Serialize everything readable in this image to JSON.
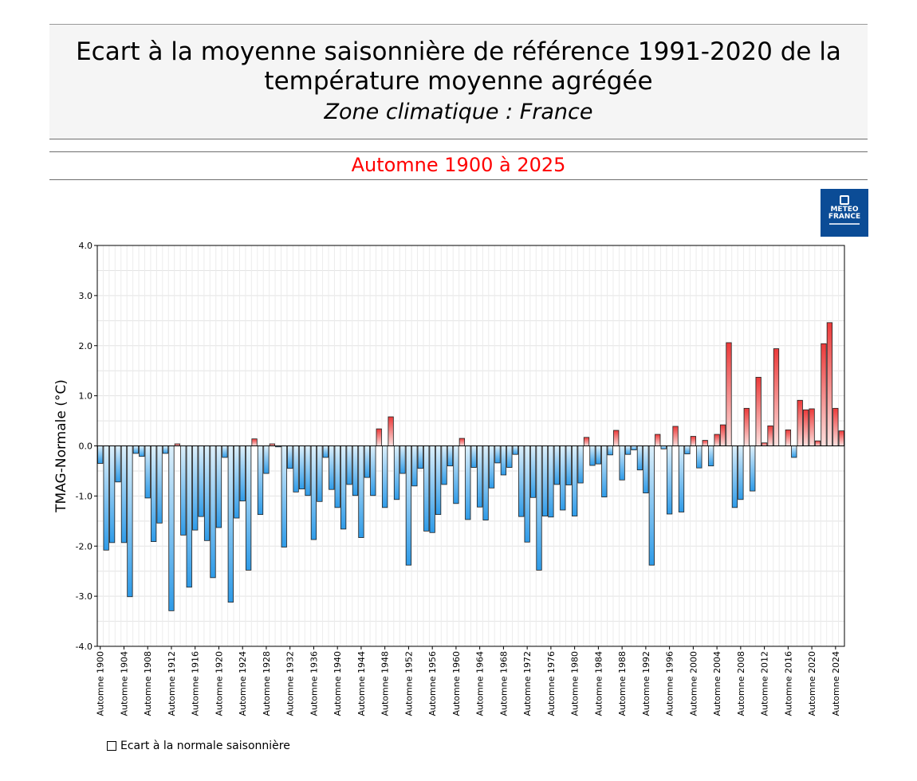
{
  "header": {
    "title": "Ecart à la moyenne saisonnière  de référence 1991-2020  de la température moyenne  agrégée",
    "subtitle": "Zone climatique : France",
    "period": "Automne 1900 à 2025"
  },
  "logo": {
    "line1": "METEO",
    "line2": "FRANCE"
  },
  "legend": {
    "label": "Ecart à la normale saisonnière"
  },
  "colors": {
    "negative_light": "#ddf0fb",
    "negative_dark": "#2e9be8",
    "positive_light": "#fde1df",
    "positive_dark": "#ec3a3a",
    "brand": "#0b4c96"
  },
  "chart_data": {
    "type": "bar",
    "ylabel": "TMAG-Normale (°C)",
    "ylim": [
      -4.0,
      4.0
    ],
    "yticks": [
      "4.0",
      "3.0",
      "2.0",
      "1.0",
      "0.0",
      "-1.0",
      "-2.0",
      "-3.0",
      "-4.0"
    ],
    "grid": true,
    "legend_position": "bottom-left",
    "x_tick_step": 4,
    "categories": [
      "Automne 1900",
      "Automne 1901",
      "Automne 1902",
      "Automne 1903",
      "Automne 1904",
      "Automne 1905",
      "Automne 1906",
      "Automne 1907",
      "Automne 1908",
      "Automne 1909",
      "Automne 1910",
      "Automne 1911",
      "Automne 1912",
      "Automne 1913",
      "Automne 1914",
      "Automne 1915",
      "Automne 1916",
      "Automne 1917",
      "Automne 1918",
      "Automne 1919",
      "Automne 1920",
      "Automne 1921",
      "Automne 1922",
      "Automne 1923",
      "Automne 1924",
      "Automne 1925",
      "Automne 1926",
      "Automne 1927",
      "Automne 1928",
      "Automne 1929",
      "Automne 1930",
      "Automne 1931",
      "Automne 1932",
      "Automne 1933",
      "Automne 1934",
      "Automne 1935",
      "Automne 1936",
      "Automne 1937",
      "Automne 1938",
      "Automne 1939",
      "Automne 1940",
      "Automne 1941",
      "Automne 1942",
      "Automne 1943",
      "Automne 1944",
      "Automne 1945",
      "Automne 1946",
      "Automne 1947",
      "Automne 1948",
      "Automne 1949",
      "Automne 1950",
      "Automne 1951",
      "Automne 1952",
      "Automne 1953",
      "Automne 1954",
      "Automne 1955",
      "Automne 1956",
      "Automne 1957",
      "Automne 1958",
      "Automne 1959",
      "Automne 1960",
      "Automne 1961",
      "Automne 1962",
      "Automne 1963",
      "Automne 1964",
      "Automne 1965",
      "Automne 1966",
      "Automne 1967",
      "Automne 1968",
      "Automne 1969",
      "Automne 1970",
      "Automne 1971",
      "Automne 1972",
      "Automne 1973",
      "Automne 1974",
      "Automne 1975",
      "Automne 1976",
      "Automne 1977",
      "Automne 1978",
      "Automne 1979",
      "Automne 1980",
      "Automne 1981",
      "Automne 1982",
      "Automne 1983",
      "Automne 1984",
      "Automne 1985",
      "Automne 1986",
      "Automne 1987",
      "Automne 1988",
      "Automne 1989",
      "Automne 1990",
      "Automne 1991",
      "Automne 1992",
      "Automne 1993",
      "Automne 1994",
      "Automne 1995",
      "Automne 1996",
      "Automne 1997",
      "Automne 1998",
      "Automne 1999",
      "Automne 2000",
      "Automne 2001",
      "Automne 2002",
      "Automne 2003",
      "Automne 2004",
      "Automne 2005",
      "Automne 2006",
      "Automne 2007",
      "Automne 2008",
      "Automne 2009",
      "Automne 2010",
      "Automne 2011",
      "Automne 2012",
      "Automne 2013",
      "Automne 2014",
      "Automne 2015",
      "Automne 2016",
      "Automne 2017",
      "Automne 2018",
      "Automne 2019",
      "Automne 2020",
      "Automne 2021",
      "Automne 2022",
      "Automne 2023",
      "Automne 2024",
      "Automne 2025"
    ],
    "series": [
      {
        "values": [
          -0.35,
          -2.08,
          -1.93,
          -0.72,
          -1.93,
          -3.01,
          -0.15,
          -0.21,
          -1.04,
          -1.91,
          -1.54,
          -0.15,
          -3.29,
          0.04,
          -1.78,
          -2.82,
          -1.68,
          -1.41,
          -1.89,
          -2.63,
          -1.63,
          -0.23,
          -3.12,
          -1.44,
          -1.1,
          -2.48,
          0.14,
          -1.37,
          -0.55,
          0.04,
          -0.02,
          -2.02,
          -0.45,
          -0.92,
          -0.86,
          -0.99,
          -1.87,
          -1.11,
          -0.23,
          -0.87,
          -1.23,
          -1.66,
          -0.77,
          -0.99,
          -1.83,
          -0.63,
          -0.99,
          0.34,
          -1.23,
          0.58,
          -1.07,
          -0.55,
          -2.38,
          -0.8,
          -0.45,
          -1.7,
          -1.73,
          -1.37,
          -0.77,
          -0.4,
          -1.15,
          0.15,
          -1.47,
          -0.43,
          -1.22,
          -1.48,
          -0.84,
          -0.34,
          -0.58,
          -0.43,
          -0.17,
          -1.41,
          -1.92,
          -1.03,
          -2.48,
          -1.4,
          -1.42,
          -0.77,
          -1.28,
          -0.78,
          -1.4,
          -0.74,
          0.17,
          -0.39,
          -0.36,
          -1.02,
          -0.18,
          0.31,
          -0.68,
          -0.17,
          -0.08,
          -0.48,
          -0.94,
          -2.38,
          0.23,
          -0.06,
          -1.36,
          0.39,
          -1.32,
          -0.16,
          0.19,
          -0.44,
          0.11,
          -0.4,
          0.23,
          0.42,
          2.06,
          -1.23,
          -1.07,
          0.75,
          -0.9,
          1.37,
          0.06,
          0.4,
          1.94,
          0.0,
          0.32,
          -0.23,
          0.91,
          0.72,
          0.74,
          0.1,
          2.04,
          2.46,
          0.75,
          0.3
        ]
      }
    ]
  }
}
